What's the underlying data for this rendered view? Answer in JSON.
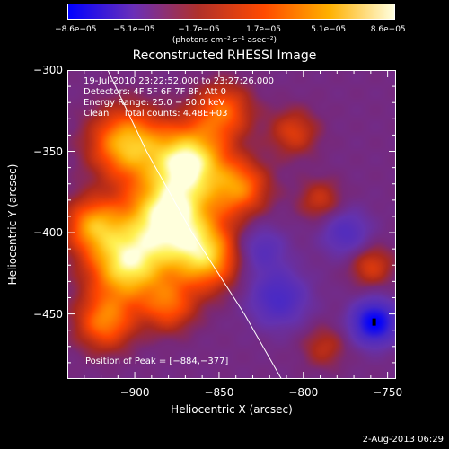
{
  "chart_data": {
    "type": "heatmap",
    "title": "Reconstructed RHESSI Image",
    "xlabel": "Heliocentric X (arcsec)",
    "ylabel": "Heliocentric Y (arcsec)",
    "xlim": [
      -940,
      -745
    ],
    "ylim": [
      -490,
      -300
    ],
    "xticks": [
      -900,
      -850,
      -800,
      -750
    ],
    "xtick_labels": [
      "−900",
      "−850",
      "−800",
      "−750"
    ],
    "yticks": [
      -300,
      -350,
      -400,
      -450
    ],
    "ytick_labels": [
      "−300",
      "−350",
      "−400",
      "−450"
    ],
    "colorbar": {
      "min": -8.6e-05,
      "max": 8.6e-05,
      "tick_labels": [
        "−8.6e−05",
        "−5.1e−05",
        "−1.7e−05",
        "1.7e−05",
        "5.1e−05",
        "8.6e−05"
      ],
      "tick_values": [
        -8.6e-05,
        -5.1e-05,
        -1.7e-05,
        1.7e-05,
        5.1e-05,
        8.6e-05
      ],
      "unit": "(photons cm⁻² s⁻¹ asec⁻²)",
      "colors": [
        "#0000ff",
        "#6a2fb8",
        "#b0302a",
        "#ff4a00",
        "#ffb000",
        "#ffffe0"
      ]
    },
    "annotations": [
      "19-Jul-2010 23:22:52.000 to 23:27:26.000",
      "Detectors: 4F 5F 6F 7F 8F, Att 0",
      "Energy Range: 25.0 − 50.0 keV",
      "Clean     Total counts: 4.48E+03"
    ],
    "peak_label": "Position of Peak = [−884,−377]",
    "peak": [
      -884,
      -377
    ],
    "limb_points": [
      [
        -916,
        -300
      ],
      [
        -893,
        -350
      ],
      [
        -866,
        -400
      ],
      [
        -835,
        -450
      ],
      [
        -813,
        -490
      ]
    ],
    "bright_sources": [
      {
        "x": -880,
        "y": -390,
        "amp": 1.0,
        "w": 18
      },
      {
        "x": -868,
        "y": -355,
        "amp": 0.9,
        "w": 15
      },
      {
        "x": -905,
        "y": -345,
        "amp": 0.75,
        "w": 15
      },
      {
        "x": -905,
        "y": -420,
        "amp": 0.85,
        "w": 16
      },
      {
        "x": -925,
        "y": -395,
        "amp": 0.6,
        "w": 12
      },
      {
        "x": -858,
        "y": -415,
        "amp": 0.7,
        "w": 14
      },
      {
        "x": -838,
        "y": -372,
        "amp": 0.55,
        "w": 12
      },
      {
        "x": -848,
        "y": -325,
        "amp": 0.5,
        "w": 12
      },
      {
        "x": -918,
        "y": -455,
        "amp": 0.55,
        "w": 12
      },
      {
        "x": -880,
        "y": -445,
        "amp": 0.45,
        "w": 11
      },
      {
        "x": -806,
        "y": -338,
        "amp": 0.35,
        "w": 10
      },
      {
        "x": -790,
        "y": -380,
        "amp": 0.3,
        "w": 9
      },
      {
        "x": -760,
        "y": -420,
        "amp": 0.35,
        "w": 9
      },
      {
        "x": -788,
        "y": -470,
        "amp": 0.25,
        "w": 9
      }
    ],
    "dark_sources": [
      {
        "x": -758,
        "y": -455,
        "amp": 1.0,
        "w": 9
      },
      {
        "x": -815,
        "y": -440,
        "amp": 0.5,
        "w": 12
      },
      {
        "x": -775,
        "y": -400,
        "amp": 0.4,
        "w": 10
      },
      {
        "x": -825,
        "y": -410,
        "amp": 0.35,
        "w": 10
      }
    ]
  },
  "timestamp": "2-Aug-2013 06:29"
}
